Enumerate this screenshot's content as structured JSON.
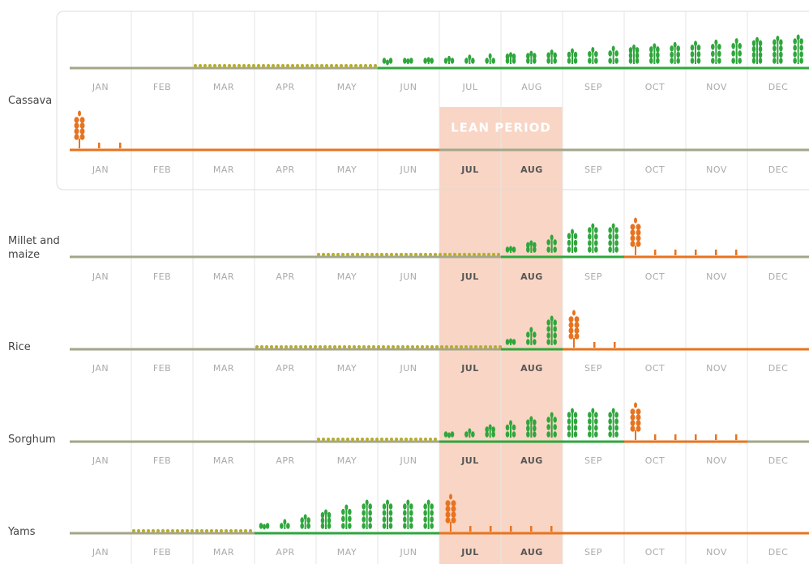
{
  "months": [
    "JAN",
    "FEB",
    "MAR",
    "APR",
    "MAY",
    "JUN",
    "JUL",
    "AUG",
    "SEP",
    "OCT",
    "NOV",
    "DEC"
  ],
  "crops": [
    "Cassava",
    "Millet and maize",
    "Rice",
    "Sorghum",
    "Yams"
  ],
  "lean_period": "LEAN PERIOD"
}
